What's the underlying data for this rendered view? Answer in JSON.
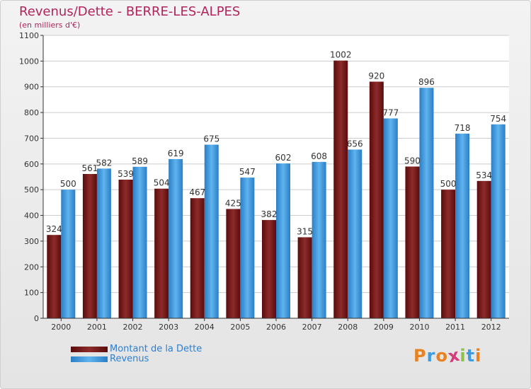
{
  "header": {
    "title": "Revenus/Dette - BERRE-LES-ALPES",
    "subtitle": "(en milliers d'€)"
  },
  "chart_data": {
    "type": "bar",
    "categories": [
      "2000",
      "2001",
      "2002",
      "2003",
      "2004",
      "2005",
      "2006",
      "2007",
      "2008",
      "2009",
      "2010",
      "2011",
      "2012"
    ],
    "series": [
      {
        "name": "Montant de la Dette",
        "color": "#7a1a1a",
        "values": [
          324,
          561,
          539,
          504,
          467,
          425,
          382,
          315,
          1002,
          920,
          590,
          500,
          534
        ]
      },
      {
        "name": "Revenus",
        "color": "#3d9be0",
        "values": [
          500,
          582,
          589,
          619,
          675,
          547,
          602,
          608,
          656,
          777,
          896,
          718,
          754
        ]
      }
    ],
    "y_ticks": [
      0,
      100,
      200,
      300,
      400,
      500,
      600,
      700,
      800,
      900,
      1000,
      1100
    ],
    "ylim": [
      0,
      1100
    ],
    "grid": true,
    "legend_position": "bottom-left"
  },
  "legend": {
    "debt_label": "Montant de la Dette",
    "revenue_label": "Revenus"
  },
  "logo": {
    "letters": [
      "P",
      "r",
      "o",
      "x",
      "i",
      "t",
      "i"
    ],
    "colors": [
      "#e8811f",
      "#3d9be0",
      "#e8811f",
      "#d63a7a",
      "#8bc34a",
      "#3d9be0",
      "#e8811f"
    ]
  }
}
